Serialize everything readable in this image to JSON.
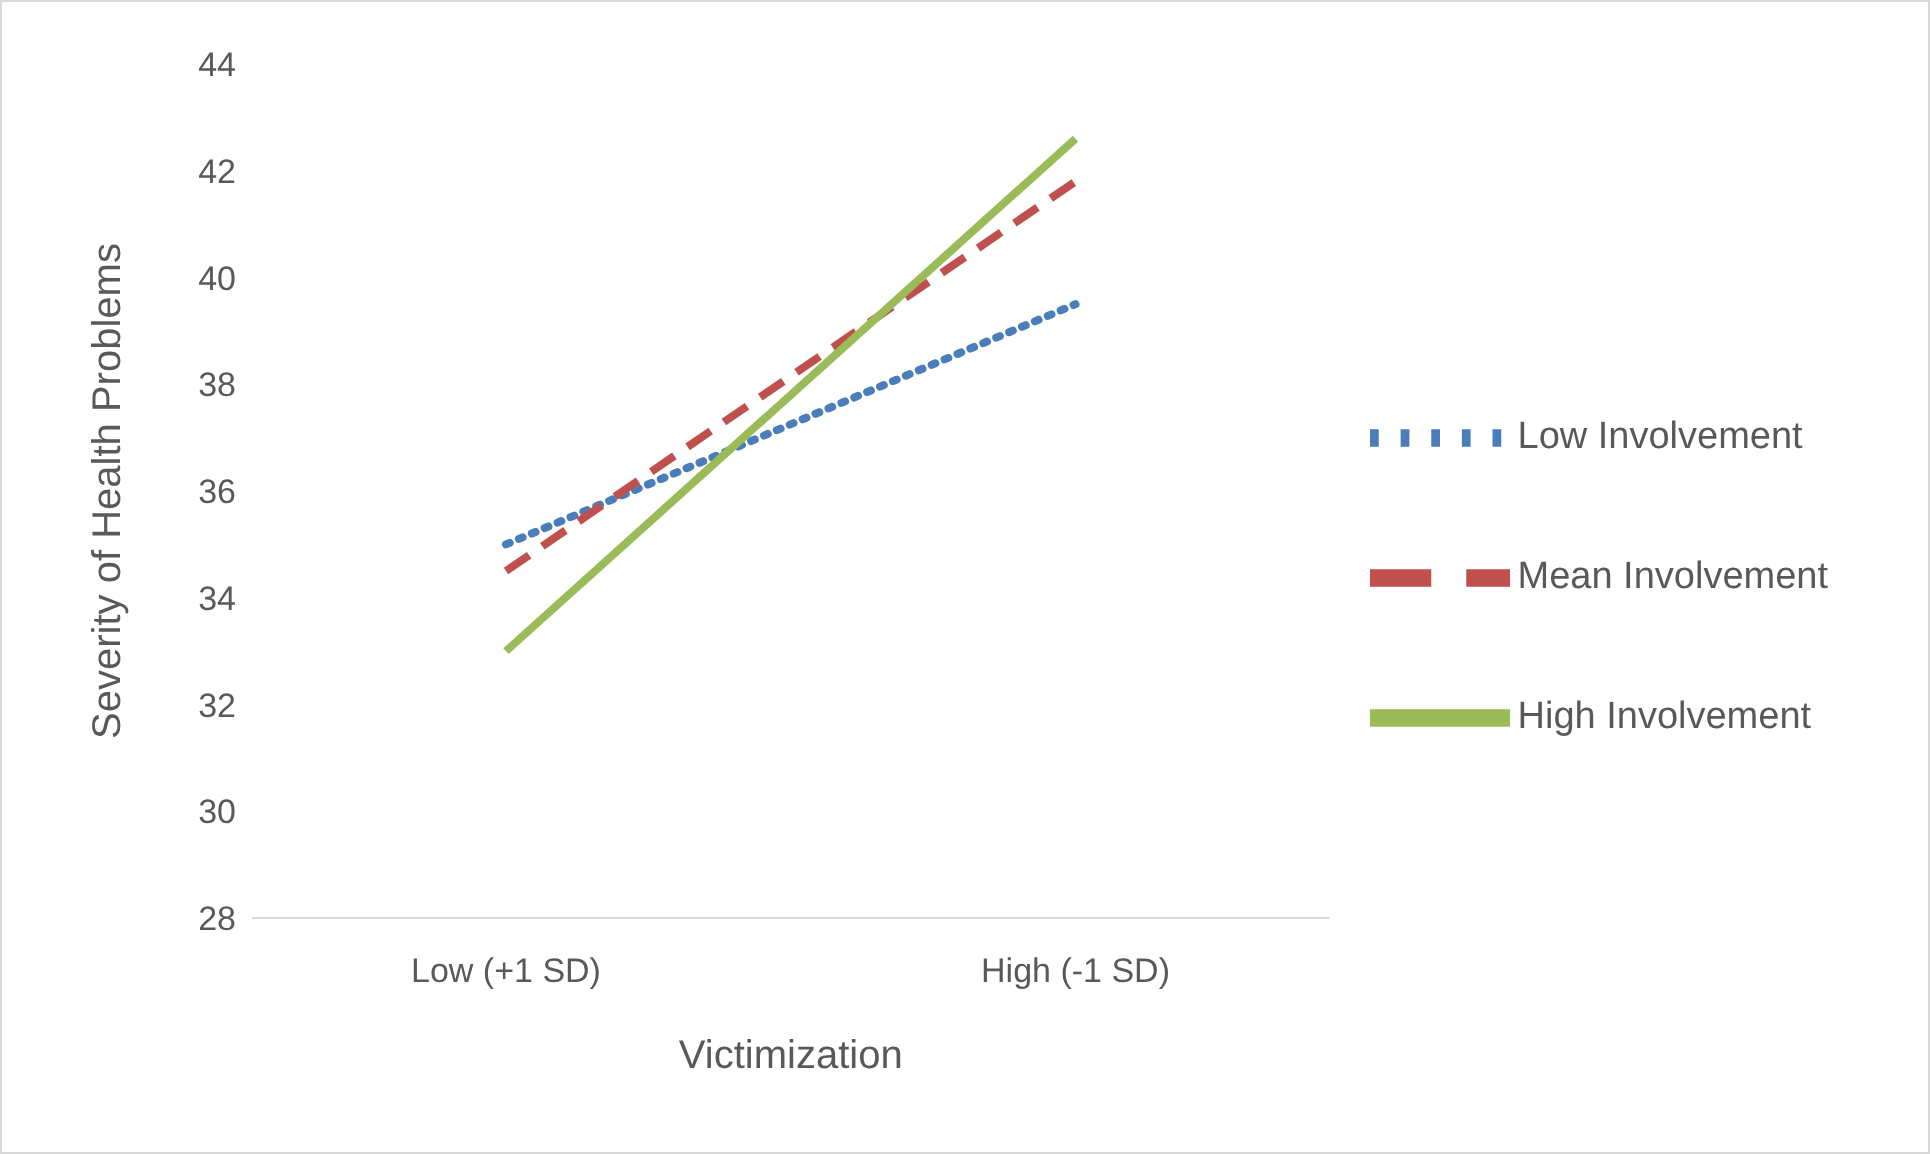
{
  "chart_data": {
    "type": "line",
    "xlabel": "Victimization",
    "ylabel": "Severity of Health Problems",
    "categories": [
      "Low (+1 SD)",
      "High (-1 SD)"
    ],
    "series": [
      {
        "name": "Low Involvement",
        "color": "#4a7ebb",
        "values": [
          35.0,
          39.5
        ],
        "line_style": "dotted"
      },
      {
        "name": "Mean Involvement",
        "color": "#c0504d",
        "values": [
          34.5,
          41.8
        ],
        "line_style": "dashed"
      },
      {
        "name": "High Involvement",
        "color": "#9bbb59",
        "values": [
          33.0,
          42.6
        ],
        "line_style": "solid"
      }
    ],
    "ylim": [
      28,
      44
    ],
    "yticks": [
      28,
      30,
      32,
      34,
      36,
      38,
      40,
      42,
      44
    ],
    "grid": false,
    "legend": "right",
    "marker": "none"
  }
}
